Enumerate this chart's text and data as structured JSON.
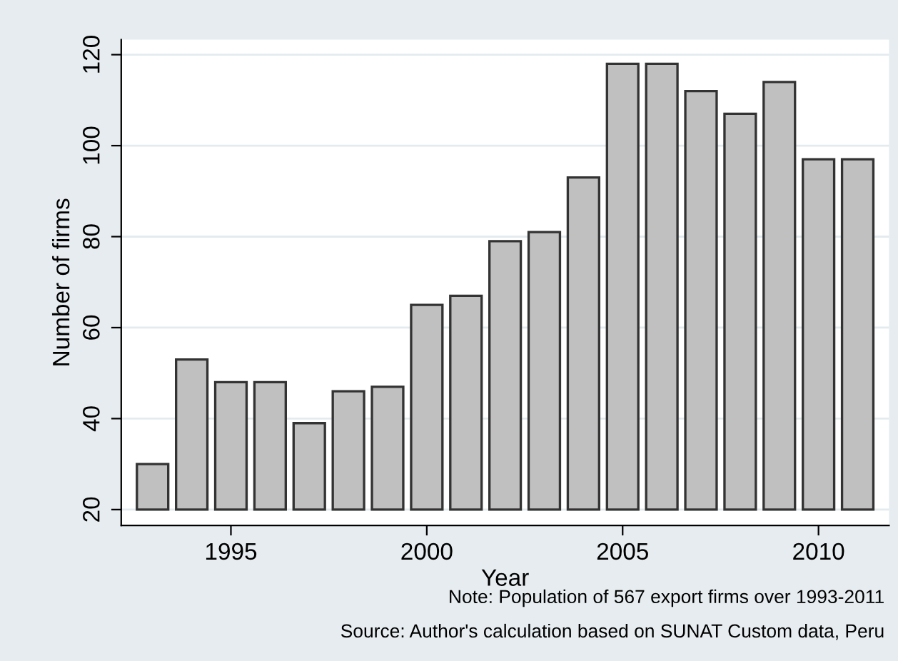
{
  "chart_data": {
    "type": "bar",
    "xlabel": "Year",
    "ylabel": "Number of firms",
    "x": [
      1993,
      1994,
      1995,
      1996,
      1997,
      1998,
      1999,
      2000,
      2001,
      2002,
      2003,
      2004,
      2005,
      2006,
      2007,
      2008,
      2009,
      2010,
      2011
    ],
    "base": [
      20,
      20,
      20,
      20,
      20,
      20,
      20,
      20,
      20,
      20,
      20,
      20,
      20,
      20,
      20,
      20,
      20,
      20,
      20
    ],
    "values": [
      10,
      33,
      28,
      28,
      19,
      26,
      27,
      45,
      47,
      59,
      61,
      73,
      98,
      98,
      92,
      87,
      94,
      77,
      77
    ],
    "color": "#c0c0c0",
    "xlim": [
      1992.2,
      2011.8
    ],
    "xticks": [
      1995,
      2000,
      2005,
      2010
    ],
    "ylim": [
      16.5,
      123.3
    ],
    "yticks": [
      20,
      40,
      60,
      80,
      100,
      120
    ],
    "grid": "y",
    "legend": false,
    "annotations": [
      "Note: Population of 567 export firms over 1993-2011",
      "Source: Author's calculation based on SUNAT Custom data, Peru"
    ]
  }
}
